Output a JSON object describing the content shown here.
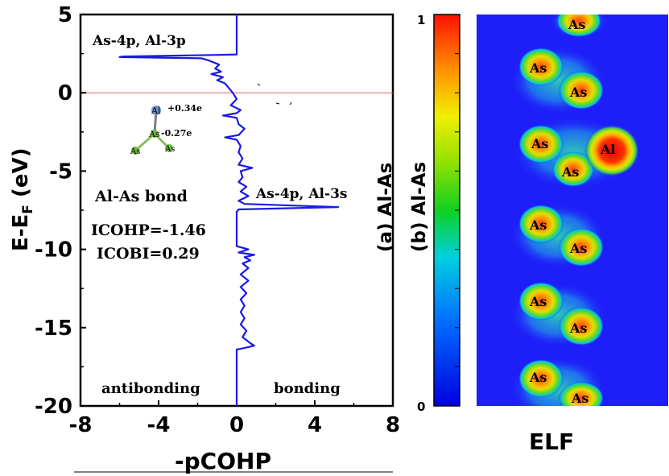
{
  "chart_data": [
    {
      "type": "line",
      "panel": "(a) Al-As",
      "xlabel": "-pCOHP",
      "ylabel": "E-E",
      "ylabel_sub": "F",
      "ylabel_unit": " (eV)",
      "xlim": [
        -8,
        8
      ],
      "ylim": [
        -20,
        5
      ],
      "xticks": [
        -8,
        -4,
        0,
        4,
        8
      ],
      "yticks": [
        5,
        0,
        -5,
        -10,
        -15,
        -20
      ],
      "fermi_level": 0,
      "color": "#1a1ae6",
      "series": [
        {
          "name": "Al-As pCOHP",
          "points": [
            [
              0,
              5
            ],
            [
              0,
              2.45
            ],
            [
              -1.0,
              2.42
            ],
            [
              -5.8,
              2.32
            ],
            [
              -6.0,
              2.28
            ],
            [
              -1.8,
              2.2
            ],
            [
              -1.4,
              2.05
            ],
            [
              -0.9,
              1.8
            ],
            [
              -1.1,
              1.55
            ],
            [
              -0.8,
              1.35
            ],
            [
              -1.3,
              1.2
            ],
            [
              -0.7,
              1.0
            ],
            [
              -1.0,
              0.8
            ],
            [
              -0.6,
              0.6
            ],
            [
              -0.4,
              0.3
            ],
            [
              -0.2,
              0.0
            ],
            [
              0,
              -0.4
            ],
            [
              -0.3,
              -0.8
            ],
            [
              0.2,
              -1.1
            ],
            [
              0,
              -1.3
            ],
            [
              -0.7,
              -1.45
            ],
            [
              0,
              -1.6
            ],
            [
              0.1,
              -2.0
            ],
            [
              0.4,
              -2.3
            ],
            [
              0.1,
              -2.7
            ],
            [
              -0.6,
              -2.85
            ],
            [
              0,
              -3.0
            ],
            [
              0.2,
              -3.4
            ],
            [
              0.1,
              -3.8
            ],
            [
              0.3,
              -4.2
            ],
            [
              0.1,
              -4.6
            ],
            [
              0.8,
              -4.8
            ],
            [
              0.2,
              -5.0
            ],
            [
              0.3,
              -5.4
            ],
            [
              0.1,
              -5.7
            ],
            [
              0.5,
              -6.0
            ],
            [
              0.2,
              -6.3
            ],
            [
              0.6,
              -6.6
            ],
            [
              0.1,
              -6.9
            ],
            [
              0.4,
              -7.1
            ],
            [
              5.2,
              -7.3
            ],
            [
              0.1,
              -7.45
            ],
            [
              0,
              -7.6
            ],
            [
              0,
              -9.8
            ],
            [
              0.6,
              -10.0
            ],
            [
              0.1,
              -10.2
            ],
            [
              0.9,
              -10.35
            ],
            [
              0.4,
              -10.5
            ],
            [
              0.7,
              -10.7
            ],
            [
              0.3,
              -10.9
            ],
            [
              0.6,
              -11.2
            ],
            [
              0.2,
              -11.6
            ],
            [
              0.6,
              -12.0
            ],
            [
              0.2,
              -12.4
            ],
            [
              0.5,
              -12.8
            ],
            [
              0.2,
              -13.2
            ],
            [
              0.4,
              -13.6
            ],
            [
              0.2,
              -14.0
            ],
            [
              0.4,
              -14.4
            ],
            [
              0.2,
              -14.8
            ],
            [
              0.5,
              -15.2
            ],
            [
              0.3,
              -15.6
            ],
            [
              0.7,
              -16.0
            ],
            [
              0.9,
              -16.15
            ],
            [
              0.4,
              -16.3
            ],
            [
              0,
              -16.4
            ],
            [
              0,
              -20
            ]
          ]
        }
      ],
      "annotations": {
        "peak_top": "As-4p, Al-3p",
        "peak_mid": "As-4p, Al-3s",
        "bond": "Al-As bond",
        "icohp": "ICOHP=-1.46",
        "icobi": "ICOBI=0.29",
        "antibonding": "antibonding",
        "bonding": "bonding"
      },
      "inset": {
        "atoms": [
          "Al",
          "As",
          "As",
          "As"
        ],
        "al_charge": "+0.34e",
        "as_charge": "-0.27e"
      }
    },
    {
      "type": "heatmap",
      "panel": "(b) Al-As",
      "title": "ELF",
      "colorbar": {
        "min": "0",
        "max": "1"
      },
      "atom_labels": [
        "As",
        "As",
        "As",
        "As",
        "Al",
        "As",
        "As",
        "As",
        "As",
        "As",
        "As",
        "As",
        "As"
      ]
    }
  ]
}
